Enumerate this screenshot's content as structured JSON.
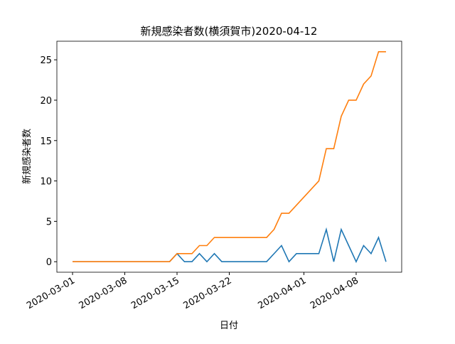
{
  "chart_data": {
    "type": "line",
    "title": "新規感染者数(横須賀市)2020-04-12",
    "xlabel": "日付",
    "ylabel": "新規感染者数",
    "x": [
      "2020-03-01",
      "2020-03-02",
      "2020-03-03",
      "2020-03-04",
      "2020-03-05",
      "2020-03-06",
      "2020-03-07",
      "2020-03-08",
      "2020-03-09",
      "2020-03-10",
      "2020-03-11",
      "2020-03-12",
      "2020-03-13",
      "2020-03-14",
      "2020-03-15",
      "2020-03-16",
      "2020-03-17",
      "2020-03-18",
      "2020-03-19",
      "2020-03-20",
      "2020-03-21",
      "2020-03-22",
      "2020-03-23",
      "2020-03-24",
      "2020-03-25",
      "2020-03-26",
      "2020-03-27",
      "2020-03-28",
      "2020-03-29",
      "2020-03-30",
      "2020-03-31",
      "2020-04-01",
      "2020-04-02",
      "2020-04-03",
      "2020-04-04",
      "2020-04-05",
      "2020-04-06",
      "2020-04-07",
      "2020-04-08",
      "2020-04-09",
      "2020-04-10",
      "2020-04-11",
      "2020-04-12"
    ],
    "series": [
      {
        "color": "#1f77b4",
        "values": [
          0,
          0,
          0,
          0,
          0,
          0,
          0,
          0,
          0,
          0,
          0,
          0,
          0,
          0,
          1,
          0,
          0,
          1,
          0,
          1,
          0,
          0,
          0,
          0,
          0,
          0,
          0,
          1,
          2,
          0,
          1,
          1,
          1,
          1,
          4,
          0,
          4,
          2,
          0,
          2,
          1,
          3,
          0
        ]
      },
      {
        "color": "#ff7f0e",
        "values": [
          0,
          0,
          0,
          0,
          0,
          0,
          0,
          0,
          0,
          0,
          0,
          0,
          0,
          0,
          1,
          1,
          1,
          2,
          2,
          3,
          3,
          3,
          3,
          3,
          3,
          3,
          3,
          4,
          6,
          6,
          7,
          8,
          9,
          10,
          14,
          14,
          18,
          20,
          20,
          22,
          23,
          26,
          26
        ]
      }
    ],
    "xlim": [
      "2020-02-27T21:36Z",
      "2020-04-14T02:24Z"
    ],
    "xticks": [
      "2020-03-01",
      "2020-03-08",
      "2020-03-15",
      "2020-03-22",
      "2020-04-01",
      "2020-04-08"
    ],
    "ylim": [
      -1.3,
      27.3
    ],
    "yticks": [
      0,
      5,
      10,
      15,
      20,
      25
    ],
    "grid": false
  }
}
